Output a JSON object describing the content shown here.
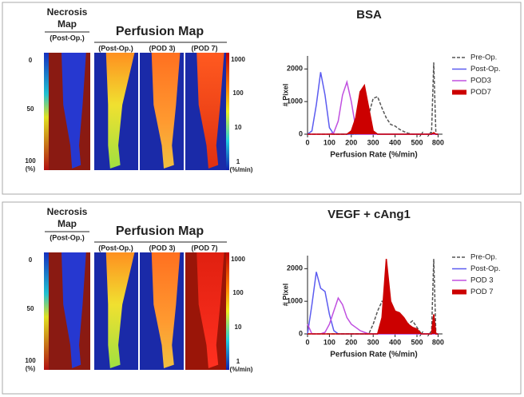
{
  "panels": [
    {
      "necrosis_title": [
        "Necrosis",
        "Map"
      ],
      "necrosis_sub": "(Post-Op.)",
      "perfusion_title": "Perfusion Map",
      "perfusion_subs": [
        "(Post-Op.)",
        "(POD 3)",
        "(POD 7)"
      ],
      "necrosis_scale": [
        "0",
        "50",
        "100",
        "(%)"
      ],
      "perfusion_scale": [
        "1000",
        "100",
        "10",
        "1",
        "(%/min)"
      ]
    },
    {
      "necrosis_title": [
        "Necrosis",
        "Map"
      ],
      "necrosis_sub": "(Post-Op.)",
      "perfusion_title": "Perfusion Map",
      "perfusion_subs": [
        "(Post-Op.)",
        "(POD 3)",
        "(POD 7)"
      ],
      "necrosis_scale": [
        "0",
        "50",
        "100",
        "(%)"
      ],
      "perfusion_scale": [
        "1000",
        "100",
        "10",
        "1",
        "(%/min)"
      ]
    }
  ],
  "chart_data": [
    {
      "type": "line",
      "title": "BSA",
      "x_label": "Perfusion  Rate (%/min)",
      "y_label": "# Pixel",
      "x": [
        0,
        20,
        40,
        60,
        80,
        100,
        120,
        140,
        160,
        180,
        200,
        220,
        240,
        260,
        280,
        300,
        320,
        340,
        360,
        380,
        400,
        420,
        440,
        460,
        480,
        500,
        520,
        760,
        770,
        780,
        790,
        800
      ],
      "xlim": [
        0,
        820
      ],
      "xbreak": [
        520,
        760
      ],
      "xticks": [
        0,
        100,
        200,
        300,
        400,
        500,
        800
      ],
      "ylim": [
        0,
        2400
      ],
      "yticks": [
        0,
        1000,
        2000
      ],
      "series": [
        {
          "name": "Pre-Op.",
          "color": "#555555",
          "dash": true,
          "fill": false,
          "values": [
            0,
            0,
            0,
            0,
            0,
            0,
            0,
            0,
            0,
            0,
            0,
            0,
            50,
            200,
            600,
            1100,
            1150,
            800,
            500,
            300,
            250,
            150,
            80,
            30,
            0,
            0,
            0,
            0,
            0,
            2200,
            0,
            0
          ]
        },
        {
          "name": "Post-Op.",
          "color": "#5b5bf0",
          "dash": false,
          "fill": false,
          "values": [
            0,
            100,
            900,
            1900,
            1200,
            200,
            0,
            0,
            0,
            0,
            0,
            0,
            0,
            0,
            0,
            0,
            0,
            0,
            0,
            0,
            0,
            0,
            0,
            0,
            0,
            0,
            0,
            0,
            0,
            0,
            0,
            0
          ]
        },
        {
          "name": "POD3",
          "color": "#c050e0",
          "dash": false,
          "fill": false,
          "values": [
            0,
            0,
            0,
            0,
            0,
            0,
            50,
            400,
            1200,
            1600,
            1000,
            200,
            0,
            0,
            0,
            0,
            0,
            0,
            0,
            0,
            0,
            0,
            0,
            0,
            0,
            0,
            0,
            0,
            0,
            0,
            0,
            0
          ]
        },
        {
          "name": "POD7",
          "color": "#cc0000",
          "dash": false,
          "fill": true,
          "values": [
            0,
            0,
            0,
            0,
            0,
            0,
            0,
            0,
            0,
            0,
            100,
            500,
            1300,
            1500,
            800,
            100,
            0,
            0,
            0,
            0,
            0,
            0,
            0,
            0,
            0,
            0,
            0,
            0,
            0,
            50,
            0,
            0
          ]
        }
      ]
    },
    {
      "type": "line",
      "title": "VEGF + cAng1",
      "x_label": "Perfusion  Rate (%/min)",
      "y_label": "# Pixel",
      "x": [
        0,
        20,
        40,
        60,
        80,
        100,
        120,
        140,
        160,
        180,
        200,
        220,
        240,
        260,
        280,
        300,
        320,
        340,
        360,
        380,
        400,
        420,
        440,
        460,
        480,
        500,
        520,
        760,
        770,
        780,
        790,
        800
      ],
      "xlim": [
        0,
        820
      ],
      "xbreak": [
        520,
        760
      ],
      "xticks": [
        0,
        100,
        200,
        300,
        400,
        500,
        800
      ],
      "ylim": [
        0,
        2400
      ],
      "yticks": [
        0,
        1000,
        2000
      ],
      "series": [
        {
          "name": "Pre-Op.",
          "color": "#555555",
          "dash": true,
          "fill": false,
          "values": [
            0,
            0,
            0,
            0,
            0,
            0,
            0,
            0,
            0,
            0,
            0,
            0,
            0,
            0,
            0,
            300,
            700,
            1000,
            900,
            800,
            700,
            600,
            400,
            300,
            400,
            200,
            0,
            0,
            0,
            2300,
            0,
            0
          ]
        },
        {
          "name": "Post-Op.",
          "color": "#5b5bf0",
          "dash": false,
          "fill": false,
          "values": [
            0,
            900,
            1900,
            1400,
            1300,
            600,
            100,
            0,
            0,
            0,
            0,
            0,
            0,
            0,
            0,
            0,
            0,
            0,
            0,
            0,
            0,
            0,
            0,
            0,
            0,
            0,
            0,
            0,
            0,
            0,
            0,
            0
          ]
        },
        {
          "name": "POD 3",
          "color": "#c050e0",
          "dash": false,
          "fill": false,
          "values": [
            300,
            0,
            0,
            0,
            50,
            300,
            700,
            1100,
            900,
            500,
            300,
            200,
            100,
            50,
            0,
            0,
            0,
            0,
            0,
            0,
            0,
            0,
            0,
            0,
            0,
            0,
            0,
            0,
            0,
            0,
            0,
            0
          ]
        },
        {
          "name": "POD 7",
          "color": "#cc0000",
          "dash": false,
          "fill": true,
          "values": [
            0,
            0,
            0,
            0,
            0,
            0,
            0,
            0,
            0,
            0,
            0,
            0,
            0,
            0,
            0,
            0,
            0,
            500,
            2300,
            1000,
            700,
            650,
            500,
            300,
            200,
            150,
            0,
            0,
            0,
            600,
            0,
            0
          ]
        }
      ]
    }
  ]
}
